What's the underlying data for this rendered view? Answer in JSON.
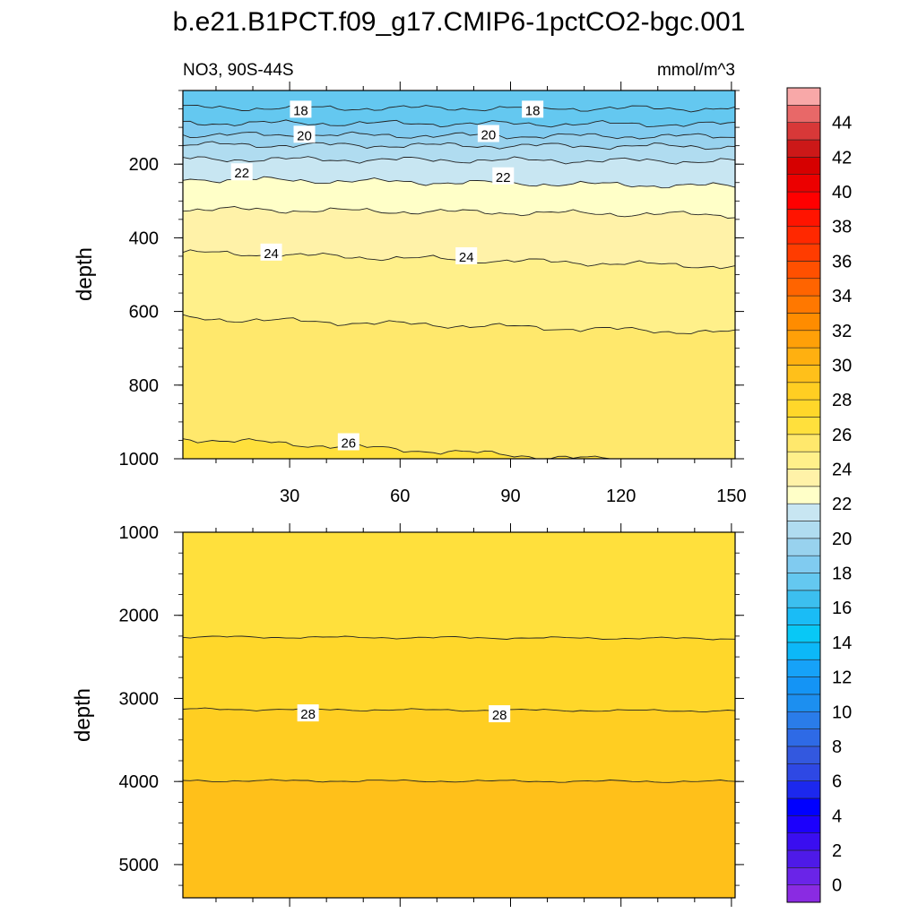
{
  "title": "b.e21.B1PCT.f09_g17.CMIP6-1pctCO2-bgc.001",
  "chart_data": {
    "type": "contour",
    "variable": "NO3",
    "region": "90S-44S",
    "subtitle_left": "NO3, 90S-44S",
    "units": "mmol/m^3",
    "xlabel": "",
    "ylabel": "depth",
    "x_range": [
      1,
      151
    ],
    "x_ticks": [
      30,
      60,
      90,
      120,
      150
    ],
    "x_tick_labels": [
      "30",
      "60",
      "90",
      "120",
      "150"
    ],
    "panels": [
      {
        "name": "upper",
        "y_range": [
          0,
          1000
        ],
        "y_inverted": true,
        "y_ticks": [
          200,
          400,
          600,
          800,
          1000
        ],
        "y_tick_labels": [
          "200",
          "400",
          "600",
          "800",
          "1000"
        ],
        "surface_value": 17.5,
        "contours": [
          {
            "level": 17,
            "depth": 47,
            "rise": 2
          },
          {
            "level": 18,
            "depth": 88,
            "rise": 4
          },
          {
            "level": 19,
            "depth": 120,
            "rise": 5
          },
          {
            "level": 20,
            "depth": 147,
            "rise": 5
          },
          {
            "level": 21,
            "depth": 186,
            "rise": 6
          },
          {
            "level": 22,
            "depth": 240,
            "rise": 20
          },
          {
            "level": 23,
            "depth": 322,
            "rise": 16
          },
          {
            "level": 24,
            "depth": 440,
            "rise": 38
          },
          {
            "level": 25,
            "depth": 618,
            "rise": 40
          },
          {
            "level": 26,
            "depth": 945,
            "rise": 75
          }
        ],
        "contour_labels": [
          {
            "text": "18",
            "x": 33,
            "depth": 52
          },
          {
            "text": "18",
            "x": 96,
            "depth": 52
          },
          {
            "text": "20",
            "x": 34,
            "depth": 120
          },
          {
            "text": "20",
            "x": 84,
            "depth": 118
          },
          {
            "text": "22",
            "x": 17,
            "depth": 222
          },
          {
            "text": "22",
            "x": 88,
            "depth": 233
          },
          {
            "text": "24",
            "x": 25,
            "depth": 440
          },
          {
            "text": "24",
            "x": 78,
            "depth": 450
          },
          {
            "text": "26",
            "x": 46,
            "depth": 955
          }
        ]
      },
      {
        "name": "lower",
        "y_range": [
          1000,
          5400
        ],
        "y_inverted": true,
        "y_ticks": [
          1000,
          2000,
          3000,
          4000,
          5000
        ],
        "y_tick_labels": [
          "1000",
          "2000",
          "3000",
          "4000",
          "5000"
        ],
        "surface_value": 26.5,
        "contours": [
          {
            "level": 27,
            "depth": 2260,
            "rise": 20
          },
          {
            "level": 28,
            "depth": 3130,
            "rise": 20
          },
          {
            "level": 29,
            "depth": 3990,
            "rise": 10
          }
        ],
        "contour_labels": [
          {
            "text": "28",
            "x": 35,
            "depth": 3180
          },
          {
            "text": "28",
            "x": 87,
            "depth": 3190
          }
        ]
      }
    ],
    "colorbar": {
      "min": -1,
      "max": 46,
      "step": 1,
      "labels": [
        "0",
        "2",
        "4",
        "6",
        "8",
        "10",
        "12",
        "14",
        "16",
        "18",
        "20",
        "22",
        "24",
        "26",
        "28",
        "30",
        "32",
        "34",
        "36",
        "38",
        "40",
        "42",
        "44"
      ],
      "colors": [
        "#8a2be2",
        "#6a24e8",
        "#4e1ae8",
        "#3a0ef0",
        "#1c00fc",
        "#0000ff",
        "#1c28ee",
        "#2e48e4",
        "#3358df",
        "#2e6ae6",
        "#2a7ce9",
        "#1c8ff0",
        "#1494f5",
        "#16a2f8",
        "#0cb8f8",
        "#08c8f6",
        "#1abcf6",
        "#3cbfef",
        "#64c8f0",
        "#80cbf0",
        "#98d2ee",
        "#b0dcf0",
        "#c8e6f2",
        "#ffffc8",
        "#fff2a8",
        "#fff08a",
        "#ffe86c",
        "#ffe03c",
        "#ffd72a",
        "#ffce22",
        "#ffc01a",
        "#ffb010",
        "#ffa008",
        "#ff8c00",
        "#ff7800",
        "#ff6400",
        "#ff5000",
        "#ff3c00",
        "#ff2800",
        "#ff1400",
        "#ff0000",
        "#ec0000",
        "#d60000",
        "#cc1818",
        "#d83838",
        "#e86868",
        "#f8a8a8"
      ]
    }
  }
}
